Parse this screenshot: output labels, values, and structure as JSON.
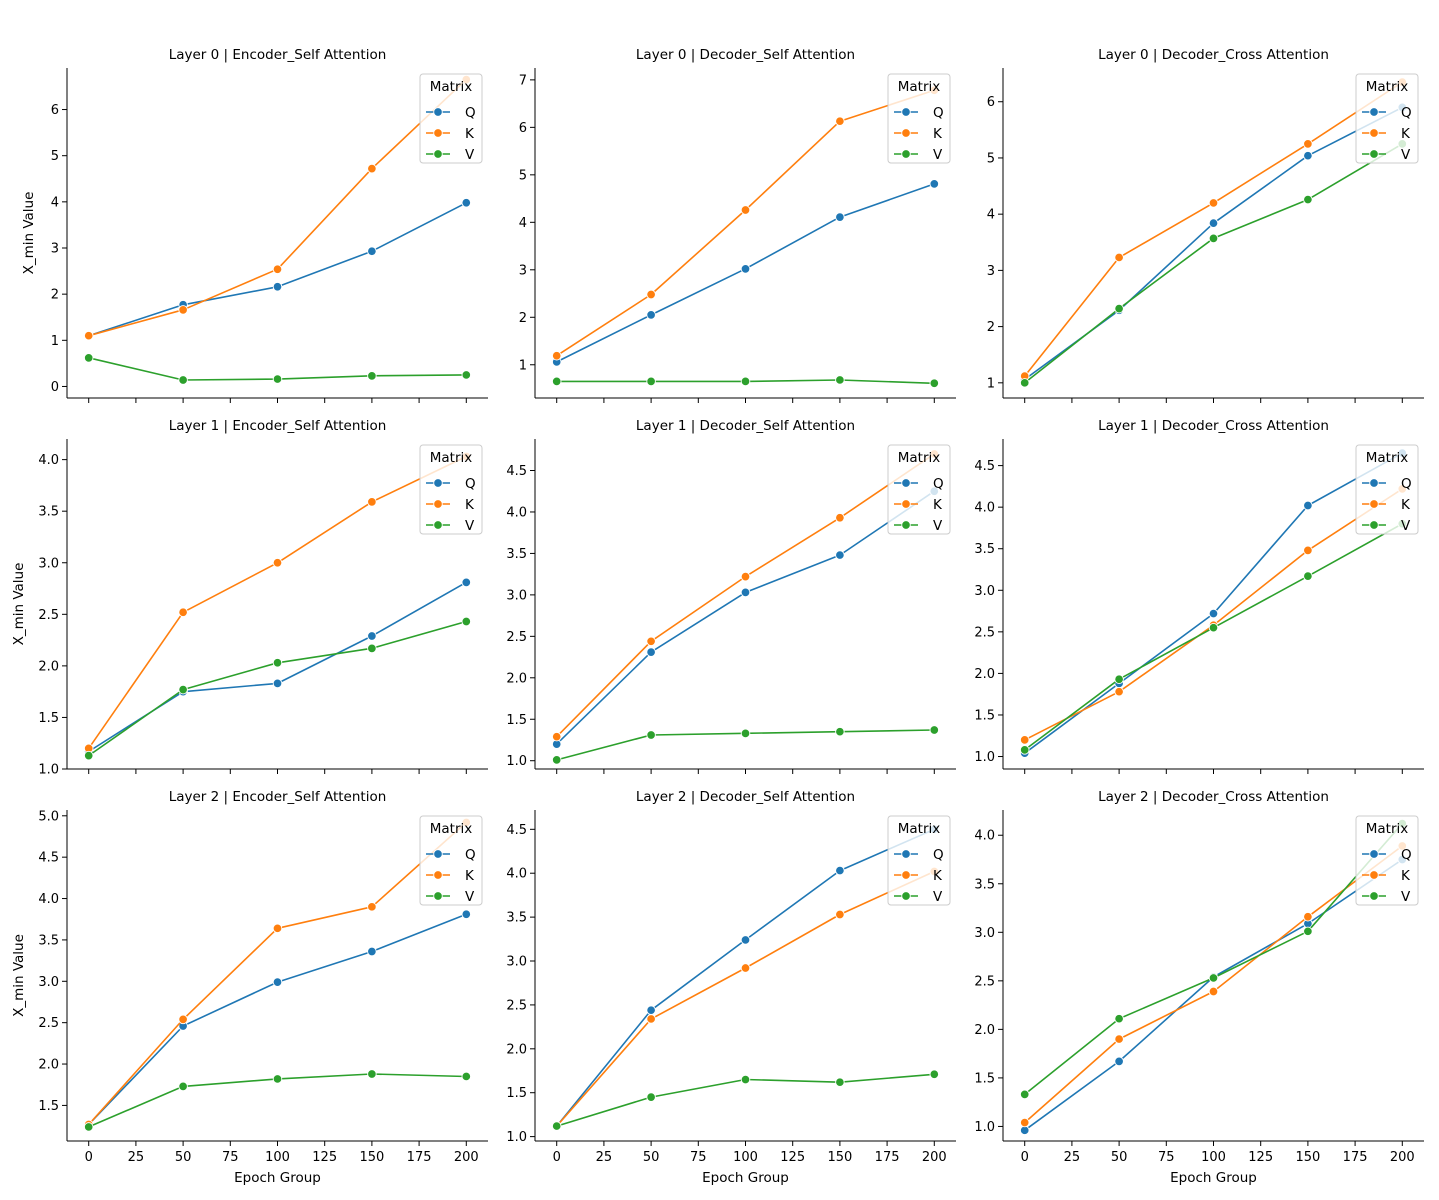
{
  "chart_data": [
    {
      "type": "line",
      "title": "Layer 0 | Encoder_Self Attention",
      "xlabel": "",
      "ylabel": "X_min Value",
      "x": [
        0,
        50,
        100,
        150,
        200
      ],
      "xticks": [
        0,
        25,
        50,
        75,
        100,
        125,
        150,
        175,
        200
      ],
      "ylim": [
        -0.25,
        6.9
      ],
      "yticks": [
        0,
        1,
        2,
        3,
        4,
        5,
        6
      ],
      "yfmt": 0,
      "legend": {
        "title": "Matrix",
        "placement": "upper right"
      },
      "series": [
        {
          "name": "Q",
          "color": "#1f77b4",
          "values": [
            1.1,
            1.77,
            2.16,
            2.93,
            3.98
          ]
        },
        {
          "name": "K",
          "color": "#ff7f0e",
          "values": [
            1.1,
            1.66,
            2.54,
            4.72,
            6.65
          ]
        },
        {
          "name": "V",
          "color": "#2ca02c",
          "values": [
            0.62,
            0.14,
            0.16,
            0.23,
            0.25
          ]
        }
      ]
    },
    {
      "type": "line",
      "title": "Layer 0 | Decoder_Self Attention",
      "xlabel": "",
      "ylabel": "",
      "x": [
        0,
        50,
        100,
        150,
        200
      ],
      "xticks": [
        0,
        25,
        50,
        75,
        100,
        125,
        150,
        175,
        200
      ],
      "ylim": [
        0.3,
        7.25
      ],
      "yticks": [
        1,
        2,
        3,
        4,
        5,
        6,
        7
      ],
      "yfmt": 0,
      "legend": {
        "title": "Matrix",
        "placement": "upper right"
      },
      "series": [
        {
          "name": "Q",
          "color": "#1f77b4",
          "values": [
            1.06,
            2.05,
            3.02,
            4.11,
            4.81
          ]
        },
        {
          "name": "K",
          "color": "#ff7f0e",
          "values": [
            1.19,
            2.48,
            4.26,
            6.13,
            6.78
          ]
        },
        {
          "name": "V",
          "color": "#2ca02c",
          "values": [
            0.65,
            0.65,
            0.65,
            0.68,
            0.61
          ]
        }
      ]
    },
    {
      "type": "line",
      "title": "Layer 0 | Decoder_Cross Attention",
      "xlabel": "",
      "ylabel": "",
      "x": [
        0,
        50,
        100,
        150,
        200
      ],
      "xticks": [
        0,
        25,
        50,
        75,
        100,
        125,
        150,
        175,
        200
      ],
      "ylim": [
        0.73,
        6.6
      ],
      "yticks": [
        1,
        2,
        3,
        4,
        5,
        6
      ],
      "yfmt": 0,
      "legend": {
        "title": "Matrix",
        "placement": "upper right"
      },
      "series": [
        {
          "name": "Q",
          "color": "#1f77b4",
          "values": [
            1.06,
            2.29,
            3.84,
            5.04,
            5.9
          ]
        },
        {
          "name": "K",
          "color": "#ff7f0e",
          "values": [
            1.12,
            3.23,
            4.2,
            5.25,
            6.35
          ]
        },
        {
          "name": "V",
          "color": "#2ca02c",
          "values": [
            1.0,
            2.32,
            3.57,
            4.26,
            5.25
          ]
        }
      ]
    },
    {
      "type": "line",
      "title": "Layer 1 | Encoder_Self Attention",
      "xlabel": "",
      "ylabel": "X_min Value",
      "x": [
        0,
        50,
        100,
        150,
        200
      ],
      "xticks": [
        0,
        25,
        50,
        75,
        100,
        125,
        150,
        175,
        200
      ],
      "ylim": [
        1.0,
        4.2
      ],
      "yticks": [
        1.0,
        1.5,
        2.0,
        2.5,
        3.0,
        3.5,
        4.0
      ],
      "yfmt": 1,
      "legend": {
        "title": "Matrix",
        "placement": "upper right"
      },
      "series": [
        {
          "name": "Q",
          "color": "#1f77b4",
          "values": [
            1.17,
            1.75,
            1.83,
            2.29,
            2.81
          ]
        },
        {
          "name": "K",
          "color": "#ff7f0e",
          "values": [
            1.2,
            2.52,
            3.0,
            3.59,
            4.03
          ]
        },
        {
          "name": "V",
          "color": "#2ca02c",
          "values": [
            1.13,
            1.77,
            2.03,
            2.17,
            2.43
          ]
        }
      ]
    },
    {
      "type": "line",
      "title": "Layer 1 | Decoder_Self Attention",
      "xlabel": "",
      "ylabel": "",
      "x": [
        0,
        50,
        100,
        150,
        200
      ],
      "xticks": [
        0,
        25,
        50,
        75,
        100,
        125,
        150,
        175,
        200
      ],
      "ylim": [
        0.9,
        4.88
      ],
      "yticks": [
        1.0,
        1.5,
        2.0,
        2.5,
        3.0,
        3.5,
        4.0,
        4.5
      ],
      "yfmt": 1,
      "legend": {
        "title": "Matrix",
        "placement": "upper right"
      },
      "series": [
        {
          "name": "Q",
          "color": "#1f77b4",
          "values": [
            1.2,
            2.31,
            3.03,
            3.48,
            4.25
          ]
        },
        {
          "name": "K",
          "color": "#ff7f0e",
          "values": [
            1.29,
            2.44,
            3.22,
            3.93,
            4.7
          ]
        },
        {
          "name": "V",
          "color": "#2ca02c",
          "values": [
            1.01,
            1.31,
            1.33,
            1.35,
            1.37
          ]
        }
      ]
    },
    {
      "type": "line",
      "title": "Layer 1 | Decoder_Cross Attention",
      "xlabel": "",
      "ylabel": "",
      "x": [
        0,
        50,
        100,
        150,
        200
      ],
      "xticks": [
        0,
        25,
        50,
        75,
        100,
        125,
        150,
        175,
        200
      ],
      "ylim": [
        0.85,
        4.82
      ],
      "yticks": [
        1.0,
        1.5,
        2.0,
        2.5,
        3.0,
        3.5,
        4.0,
        4.5
      ],
      "yfmt": 1,
      "legend": {
        "title": "Matrix",
        "placement": "upper right"
      },
      "series": [
        {
          "name": "Q",
          "color": "#1f77b4",
          "values": [
            1.04,
            1.88,
            2.72,
            4.02,
            4.65
          ]
        },
        {
          "name": "K",
          "color": "#ff7f0e",
          "values": [
            1.2,
            1.78,
            2.58,
            3.48,
            4.22
          ]
        },
        {
          "name": "V",
          "color": "#2ca02c",
          "values": [
            1.08,
            1.93,
            2.55,
            3.17,
            3.8
          ]
        }
      ]
    },
    {
      "type": "line",
      "title": "Layer 2 | Encoder_Self Attention",
      "xlabel": "Epoch Group",
      "ylabel": "X_min Value",
      "x": [
        0,
        50,
        100,
        150,
        200
      ],
      "xticks": [
        0,
        25,
        50,
        75,
        100,
        125,
        150,
        175,
        200
      ],
      "ylim": [
        1.07,
        5.07
      ],
      "yticks": [
        1.5,
        2.0,
        2.5,
        3.0,
        3.5,
        4.0,
        4.5,
        5.0
      ],
      "yfmt": 1,
      "legend": {
        "title": "Matrix",
        "placement": "upper right"
      },
      "series": [
        {
          "name": "Q",
          "color": "#1f77b4",
          "values": [
            1.27,
            2.46,
            2.99,
            3.36,
            3.81
          ]
        },
        {
          "name": "K",
          "color": "#ff7f0e",
          "values": [
            1.27,
            2.54,
            3.64,
            3.9,
            4.92
          ]
        },
        {
          "name": "V",
          "color": "#2ca02c",
          "values": [
            1.24,
            1.73,
            1.82,
            1.88,
            1.85
          ]
        }
      ]
    },
    {
      "type": "line",
      "title": "Layer 2 | Decoder_Self Attention",
      "xlabel": "Epoch Group",
      "ylabel": "",
      "x": [
        0,
        50,
        100,
        150,
        200
      ],
      "xticks": [
        0,
        25,
        50,
        75,
        100,
        125,
        150,
        175,
        200
      ],
      "ylim": [
        0.95,
        4.72
      ],
      "yticks": [
        1.0,
        1.5,
        2.0,
        2.5,
        3.0,
        3.5,
        4.0,
        4.5
      ],
      "yfmt": 1,
      "legend": {
        "title": "Matrix",
        "placement": "upper right"
      },
      "series": [
        {
          "name": "Q",
          "color": "#1f77b4",
          "values": [
            1.12,
            2.44,
            3.24,
            4.03,
            4.5
          ]
        },
        {
          "name": "K",
          "color": "#ff7f0e",
          "values": [
            1.12,
            2.34,
            2.92,
            3.53,
            4.02
          ]
        },
        {
          "name": "V",
          "color": "#2ca02c",
          "values": [
            1.12,
            1.45,
            1.65,
            1.62,
            1.71
          ]
        }
      ]
    },
    {
      "type": "line",
      "title": "Layer 2 | Decoder_Cross Attention",
      "xlabel": "Epoch Group",
      "ylabel": "",
      "x": [
        0,
        50,
        100,
        150,
        200
      ],
      "xticks": [
        0,
        25,
        50,
        75,
        100,
        125,
        150,
        175,
        200
      ],
      "ylim": [
        0.85,
        4.26
      ],
      "yticks": [
        1.0,
        1.5,
        2.0,
        2.5,
        3.0,
        3.5,
        4.0
      ],
      "yfmt": 1,
      "legend": {
        "title": "Matrix",
        "placement": "upper right"
      },
      "series": [
        {
          "name": "Q",
          "color": "#1f77b4",
          "values": [
            0.96,
            1.67,
            2.54,
            3.09,
            3.75
          ]
        },
        {
          "name": "K",
          "color": "#ff7f0e",
          "values": [
            1.04,
            1.9,
            2.39,
            3.16,
            3.89
          ]
        },
        {
          "name": "V",
          "color": "#2ca02c",
          "values": [
            1.33,
            2.11,
            2.53,
            3.01,
            4.12
          ]
        }
      ]
    }
  ]
}
